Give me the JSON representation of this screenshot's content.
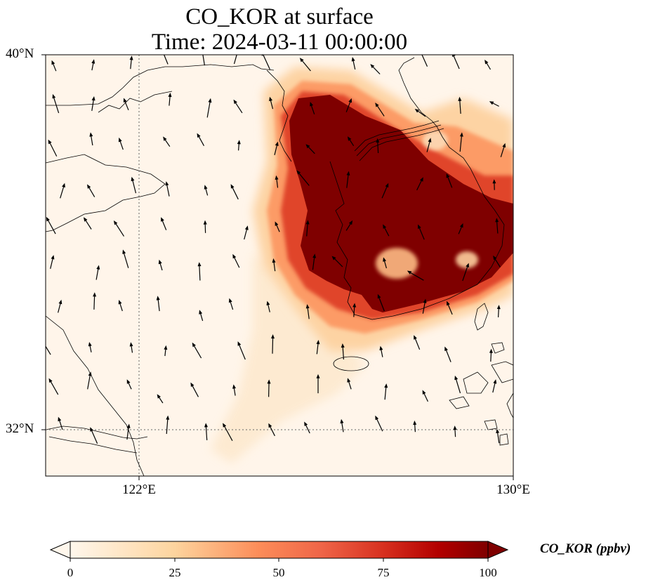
{
  "title": {
    "line1": "CO_KOR at surface",
    "line2": "Time: 2024-03-11 00:00:00"
  },
  "map": {
    "lat_labels": [
      "40°N",
      "32°N"
    ],
    "lon_labels": [
      "122°E",
      "130°E"
    ],
    "colormap": "OrRd",
    "colors": {
      "low": "#fff7ec",
      "mid": "#fdbb84",
      "high": "#7f0000",
      "coast": "#000000",
      "grid": "#555555"
    }
  },
  "colorbar": {
    "label": "CO_KOR (ppbv)",
    "ticks": [
      "0",
      "25",
      "50",
      "75",
      "100"
    ],
    "range": [
      0,
      100
    ],
    "extend": "both"
  }
}
